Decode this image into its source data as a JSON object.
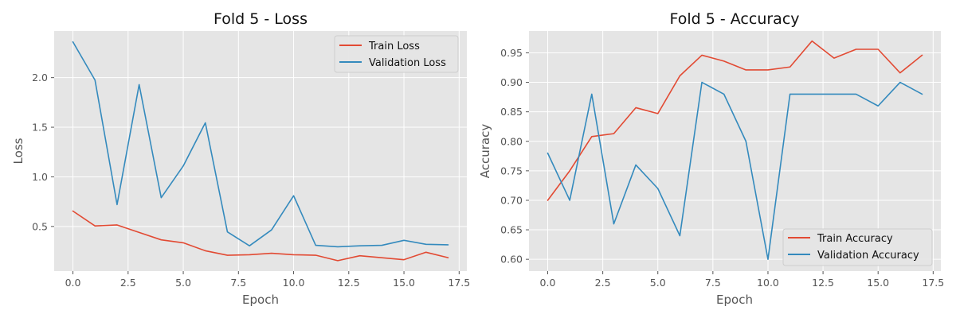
{
  "colors": {
    "train": "#e24a33",
    "validation": "#348abd"
  },
  "chart_data": [
    {
      "type": "line",
      "title": "Fold 5 - Loss",
      "xlabel": "Epoch",
      "ylabel": "Loss",
      "xlim": [
        -0.85,
        17.85
      ],
      "ylim": [
        0.05,
        2.47
      ],
      "xticks": [
        0,
        2.5,
        5,
        7.5,
        10,
        12.5,
        15,
        17.5
      ],
      "xtick_labels": [
        "0.0",
        "2.5",
        "5.0",
        "7.5",
        "10.0",
        "12.5",
        "15.0",
        "17.5"
      ],
      "yticks": [
        0.5,
        1.0,
        1.5,
        2.0
      ],
      "ytick_labels": [
        "0.5",
        "1.0",
        "1.5",
        "2.0"
      ],
      "grid": true,
      "legend_position": "top-right",
      "x": [
        0,
        1,
        2,
        3,
        4,
        5,
        6,
        7,
        8,
        9,
        10,
        11,
        12,
        13,
        14,
        15,
        16,
        17
      ],
      "series": [
        {
          "name": "Train Loss",
          "color_key": "train",
          "values": [
            0.655,
            0.505,
            0.515,
            0.44,
            0.365,
            0.335,
            0.255,
            0.21,
            0.215,
            0.23,
            0.215,
            0.21,
            0.155,
            0.205,
            0.185,
            0.165,
            0.24,
            0.185
          ]
        },
        {
          "name": "Validation Loss",
          "color_key": "validation",
          "values": [
            2.36,
            1.975,
            0.72,
            1.93,
            0.79,
            1.11,
            1.545,
            0.445,
            0.305,
            0.465,
            0.81,
            0.31,
            0.295,
            0.305,
            0.31,
            0.36,
            0.32,
            0.315
          ]
        }
      ]
    },
    {
      "type": "line",
      "title": "Fold 5 - Accuracy",
      "xlabel": "Epoch",
      "ylabel": "Accuracy",
      "xlim": [
        -0.85,
        17.85
      ],
      "ylim": [
        0.58,
        0.987
      ],
      "xticks": [
        0,
        2.5,
        5,
        7.5,
        10,
        12.5,
        15,
        17.5
      ],
      "xtick_labels": [
        "0.0",
        "2.5",
        "5.0",
        "7.5",
        "10.0",
        "12.5",
        "15.0",
        "17.5"
      ],
      "yticks": [
        0.6,
        0.65,
        0.7,
        0.75,
        0.8,
        0.85,
        0.9,
        0.95
      ],
      "ytick_labels": [
        "0.60",
        "0.65",
        "0.70",
        "0.75",
        "0.80",
        "0.85",
        "0.90",
        "0.95"
      ],
      "grid": true,
      "legend_position": "bottom-right",
      "x": [
        0,
        1,
        2,
        3,
        4,
        5,
        6,
        7,
        8,
        9,
        10,
        11,
        12,
        13,
        14,
        15,
        16,
        17
      ],
      "series": [
        {
          "name": "Train Accuracy",
          "color_key": "train",
          "values": [
            0.7,
            0.75,
            0.808,
            0.813,
            0.857,
            0.847,
            0.911,
            0.946,
            0.936,
            0.921,
            0.921,
            0.926,
            0.97,
            0.941,
            0.956,
            0.956,
            0.916,
            0.946
          ]
        },
        {
          "name": "Validation Accuracy",
          "color_key": "validation",
          "values": [
            0.78,
            0.7,
            0.88,
            0.66,
            0.76,
            0.72,
            0.64,
            0.9,
            0.88,
            0.8,
            0.6,
            0.88,
            0.88,
            0.88,
            0.88,
            0.86,
            0.9,
            0.88
          ]
        }
      ]
    }
  ]
}
